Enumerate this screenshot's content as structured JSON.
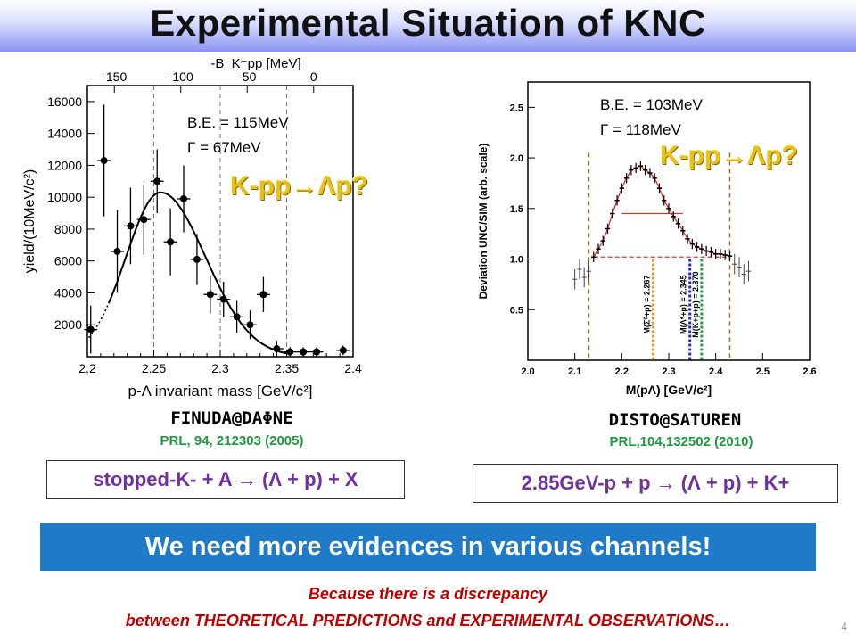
{
  "slide": {
    "title": "Experimental Situation of KNC",
    "page_number": "4",
    "banner": "We need more evidences in various channels!",
    "footnote_line1": "Because there is a discrepancy",
    "footnote_line2": "between THEORETICAL PREDICTIONS and EXPERIMENTAL OBSERVATIONS…"
  },
  "left": {
    "experiment": "FINUDA@DAΦNE",
    "reference": "PRL, 94, 212303 (2005)",
    "reaction_text": "stopped-K- + A → (Λ + p) + X",
    "be_text": "B.E. = 115MeV",
    "width_text": "Γ = 67MeV",
    "channel_text": "K-pp→Λp?"
  },
  "right": {
    "experiment": "DISTO@SATUREN",
    "reference": "PRL,104,132502 (2010)",
    "reaction_text": "2.85GeV-p + p → (Λ + p) + K+",
    "be_text": "B.E. = 103MeV",
    "width_text": "Γ = 118MeV",
    "channel_text": "K-pp→Λp?"
  },
  "chart_data": [
    {
      "type": "scatter",
      "title": "",
      "xlabel": "p-Λ invariant mass [GeV/c²]",
      "ylabel": "yield/(10MeV/c²)",
      "top_axis_label": "-B_K⁻pp [MeV]",
      "top_ticks": [
        "-150",
        "-100",
        "-50",
        "0"
      ],
      "xlim": [
        2.2,
        2.4
      ],
      "ylim": [
        0,
        17000
      ],
      "x_ticks": [
        "2.2",
        "2.25",
        "2.3",
        "2.35",
        "2.4"
      ],
      "y_ticks": [
        "2000",
        "4000",
        "6000",
        "8000",
        "10000",
        "12000",
        "14000",
        "16000"
      ],
      "series": [
        {
          "x": [
            2.2025,
            2.2125,
            2.2225,
            2.2325,
            2.2425,
            2.2525,
            2.2625,
            2.2725,
            2.2825,
            2.2925,
            2.3025,
            2.3125,
            2.3225,
            2.3325,
            2.3425,
            2.3525,
            2.3625,
            2.3725,
            2.3925
          ],
          "y": [
            1700,
            12300,
            6600,
            8200,
            8600,
            11000,
            7200,
            9900,
            6100,
            3900,
            3600,
            2500,
            2000,
            3900,
            500,
            300,
            300,
            300,
            400
          ],
          "err": [
            1500,
            3500,
            2600,
            2400,
            2200,
            2000,
            2100,
            2100,
            1600,
            1200,
            1100,
            1000,
            900,
            1100,
            500,
            300,
            300,
            300,
            300
          ]
        }
      ],
      "fit_curve": {
        "amplitude": 10300,
        "center": 2.255,
        "sigma_left": 0.026,
        "sigma_right": 0.034,
        "dotted_below_x": 2.215
      },
      "reference_lines_x": [
        2.25,
        2.3,
        2.35
      ]
    },
    {
      "type": "line",
      "title": "",
      "xlabel": "M(pΛ) [GeV/c²]",
      "ylabel": "Deviation UNC/SIM (arb. scale)",
      "xlim": [
        2.0,
        2.6
      ],
      "ylim": [
        0,
        2.75
      ],
      "x_ticks": [
        "2.0",
        "2.1",
        "2.2",
        "2.3",
        "2.4",
        "2.5",
        "2.6"
      ],
      "y_ticks": [
        "0.5",
        "1.0",
        "1.5",
        "2.0",
        "2.5"
      ],
      "series": [
        {
          "name": "",
          "x": [
            2.14,
            2.15,
            2.16,
            2.17,
            2.18,
            2.19,
            2.2,
            2.21,
            2.22,
            2.23,
            2.24,
            2.25,
            2.26,
            2.27,
            2.28,
            2.29,
            2.3,
            2.31,
            2.32,
            2.33,
            2.34,
            2.35,
            2.36,
            2.37,
            2.38,
            2.39,
            2.4,
            2.41,
            2.42,
            2.43
          ],
          "y": [
            1.02,
            1.1,
            1.18,
            1.3,
            1.45,
            1.58,
            1.7,
            1.8,
            1.88,
            1.9,
            1.92,
            1.88,
            1.85,
            1.8,
            1.7,
            1.58,
            1.5,
            1.42,
            1.35,
            1.28,
            1.2,
            1.15,
            1.12,
            1.1,
            1.08,
            1.07,
            1.05,
            1.05,
            1.04,
            1.03
          ]
        }
      ],
      "outer_points": {
        "x": [
          2.1,
          2.11,
          2.12,
          2.13,
          2.44,
          2.45,
          2.46,
          2.47
        ],
        "y": [
          0.8,
          0.9,
          0.82,
          0.88,
          0.95,
          0.92,
          0.85,
          0.88
        ]
      },
      "threshold_markers": [
        {
          "label": "M(Σ⁰+p) = 2.267",
          "x": 2.267,
          "color": "#f08a24"
        },
        {
          "label": "M(Λ*+p) = 2.345",
          "x": 2.345,
          "color": "#1c2fb0"
        },
        {
          "label": "M(K+p+p) = 2.370",
          "x": 2.37,
          "color": "#23a04a"
        }
      ],
      "window_lines_x": [
        2.13,
        2.43
      ]
    }
  ]
}
